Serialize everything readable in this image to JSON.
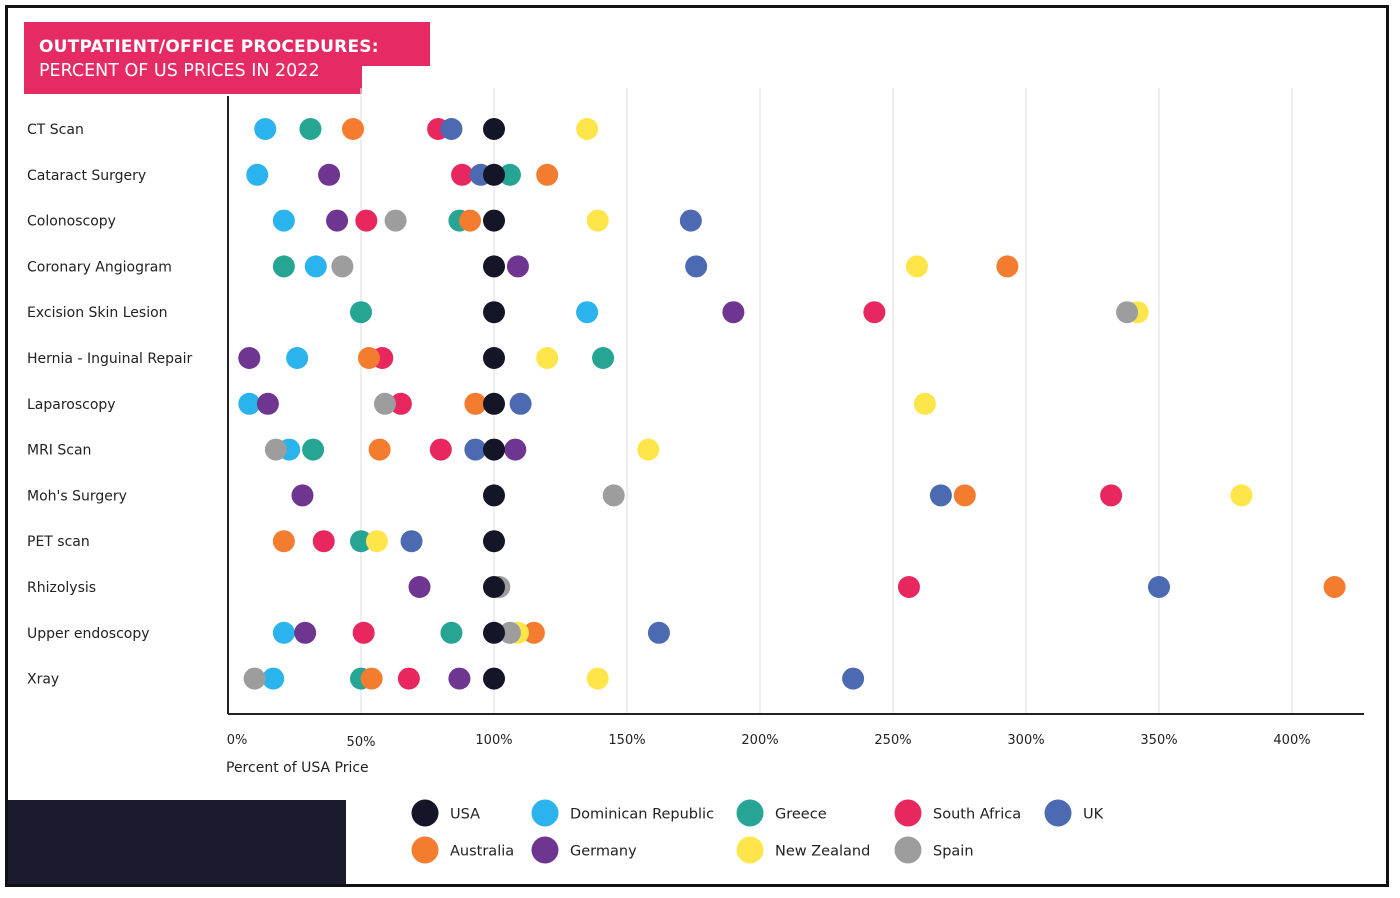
{
  "title": {
    "line1": "OUTPATIENT/OFFICE PROCEDURES:",
    "line2": "PERCENT OF US PRICES IN 2022"
  },
  "colors": {
    "accent": "#e62b64",
    "dark": "#1a1b2e"
  },
  "chart_data": {
    "type": "scatter",
    "title": "OUTPATIENT/OFFICE PROCEDURES: PERCENT OF US PRICES IN 2022",
    "xlabel": "Percent of USA Price",
    "ylabel": "",
    "xlim": [
      0,
      425
    ],
    "xticks": [
      0,
      50,
      100,
      150,
      200,
      250,
      300,
      350,
      400
    ],
    "xtick_labels": [
      "0%",
      "50%",
      "100%",
      "150%",
      "200%",
      "250%",
      "300%",
      "350%",
      "400%"
    ],
    "grid": "vertical",
    "legend_position": "bottom",
    "categories": [
      "CT Scan",
      "Cataract Surgery",
      "Colonoscopy",
      "Coronary Angiogram",
      "Excision Skin Lesion",
      "Hernia - Inguinal Repair",
      "Laparoscopy",
      "MRI Scan",
      "Moh's Surgery",
      "PET scan",
      "Rhizolysis",
      "Upper endoscopy",
      "Xray"
    ],
    "series": [
      {
        "name": "USA",
        "color": "#141627",
        "values": [
          100,
          100,
          100,
          100,
          100,
          100,
          100,
          100,
          100,
          100,
          100,
          100,
          100
        ]
      },
      {
        "name": "Dominican Republic",
        "color": "#2ab3ec",
        "values": [
          14,
          11,
          21,
          33,
          135,
          26,
          8,
          23,
          null,
          null,
          null,
          21,
          17
        ]
      },
      {
        "name": "Greece",
        "color": "#26a595",
        "values": [
          31,
          106,
          87,
          21,
          50,
          141,
          null,
          32,
          null,
          50,
          null,
          84,
          50
        ]
      },
      {
        "name": "South Africa",
        "color": "#e8275f",
        "values": [
          79,
          88,
          52,
          null,
          243,
          58,
          65,
          80,
          332,
          36,
          256,
          51,
          68
        ]
      },
      {
        "name": "UK",
        "color": "#4b6ab1",
        "values": [
          84,
          95,
          174,
          176,
          null,
          null,
          110,
          93,
          268,
          69,
          350,
          162,
          235
        ]
      },
      {
        "name": "Australia",
        "color": "#f47c2f",
        "values": [
          47,
          120,
          91,
          293,
          null,
          53,
          93,
          57,
          277,
          21,
          416,
          115,
          54
        ]
      },
      {
        "name": "Germany",
        "color": "#6e3591",
        "values": [
          null,
          38,
          41,
          109,
          190,
          8,
          15,
          108,
          28,
          null,
          72,
          29,
          87
        ]
      },
      {
        "name": "New Zealand",
        "color": "#fde54a",
        "values": [
          135,
          null,
          139,
          259,
          342,
          120,
          262,
          158,
          381,
          56,
          null,
          109,
          139
        ]
      },
      {
        "name": "Spain",
        "color": "#9d9d9d",
        "values": [
          null,
          null,
          63,
          43,
          338,
          null,
          59,
          18,
          145,
          null,
          102,
          106,
          10
        ]
      }
    ],
    "legend": [
      [
        "USA",
        "Dominican Republic",
        "Greece",
        "South Africa",
        "UK"
      ],
      [
        "Australia",
        "Germany",
        "New Zealand",
        "Spain"
      ]
    ]
  }
}
